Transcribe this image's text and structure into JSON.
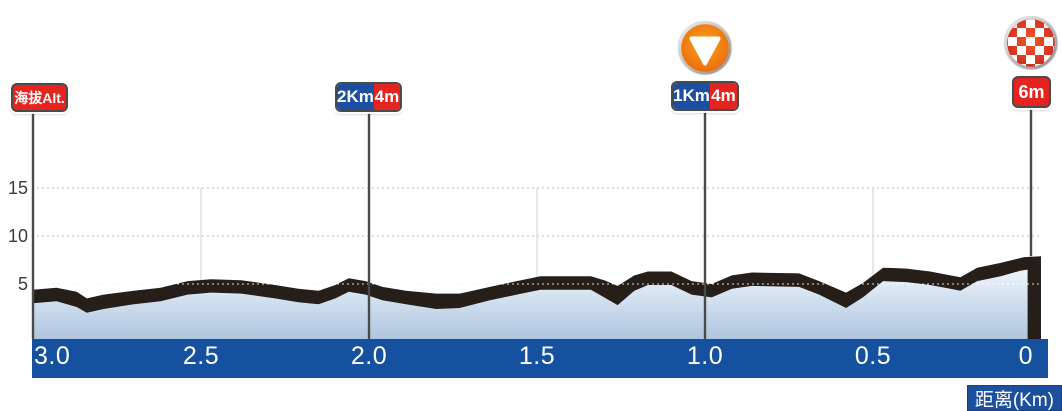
{
  "colors": {
    "road_band": "#251e19",
    "area_top": "#eef4fb",
    "area_bottom": "#aec5df",
    "axis_bar": "#15519f",
    "badge_red": "#e5231f",
    "badge_blue": "#1d4fa1",
    "badge_border": "#4a4a48",
    "grid_gray": "#bdbdbd",
    "grid_vertical": "#d9d9d9",
    "tick_text": "#3a3a3a",
    "bar_text": "#ffffff"
  },
  "chart_data": {
    "type": "area",
    "title": "",
    "xlabel": "距离(Km)",
    "ylabel": "海拔Alt.",
    "x_unit": "Km",
    "y_unit": "m",
    "x_axis_reversed": true,
    "grid": true,
    "x_range": [
      3.0,
      0
    ],
    "y_range": [
      0,
      17
    ],
    "x_ticks": [
      3.0,
      2.5,
      2.0,
      1.5,
      1.0,
      0.5,
      0
    ],
    "x_tick_labels": [
      "3.0",
      "2.5",
      "2.0",
      "1.5",
      "1.0",
      "0.5",
      "0"
    ],
    "y_ticks": [
      5,
      10,
      15
    ],
    "y_tick_labels": [
      "5",
      "10",
      "15"
    ],
    "markers": [
      {
        "id": "altitude-legend",
        "label": "海拔Alt.",
        "km": 3.0
      },
      {
        "id": "km2",
        "label": "2Km",
        "altitude": "4m",
        "km": 2.0
      },
      {
        "id": "km1",
        "label": "1Km",
        "altitude": "4m",
        "km": 1.0,
        "icon": "last-km-triangle-icon"
      },
      {
        "id": "finish",
        "altitude": "6m",
        "km": 0,
        "icon": "finish-checkered-icon"
      }
    ],
    "road_surface_profile_km_m": [
      [
        3.0,
        4.4
      ],
      [
        2.93,
        4.6
      ],
      [
        2.87,
        4.2
      ],
      [
        2.84,
        3.5
      ],
      [
        2.79,
        3.9
      ],
      [
        2.7,
        4.3
      ],
      [
        2.62,
        4.6
      ],
      [
        2.54,
        5.3
      ],
      [
        2.47,
        5.5
      ],
      [
        2.38,
        5.4
      ],
      [
        2.28,
        4.9
      ],
      [
        2.21,
        4.5
      ],
      [
        2.15,
        4.3
      ],
      [
        2.1,
        4.9
      ],
      [
        2.06,
        5.6
      ],
      [
        2.01,
        5.3
      ],
      [
        1.96,
        4.7
      ],
      [
        1.89,
        4.3
      ],
      [
        1.8,
        4.0
      ],
      [
        1.73,
        4.0
      ],
      [
        1.64,
        4.7
      ],
      [
        1.56,
        5.3
      ],
      [
        1.49,
        5.8
      ],
      [
        1.34,
        5.8
      ],
      [
        1.3,
        5.4
      ],
      [
        1.26,
        4.8
      ],
      [
        1.21,
        5.9
      ],
      [
        1.17,
        6.3
      ],
      [
        1.1,
        6.3
      ],
      [
        1.04,
        5.3
      ],
      [
        0.98,
        5.0
      ],
      [
        0.92,
        5.9
      ],
      [
        0.86,
        6.2
      ],
      [
        0.72,
        6.1
      ],
      [
        0.66,
        5.3
      ],
      [
        0.58,
        4.1
      ],
      [
        0.53,
        5.1
      ],
      [
        0.47,
        6.7
      ],
      [
        0.4,
        6.6
      ],
      [
        0.33,
        6.3
      ],
      [
        0.27,
        5.9
      ],
      [
        0.24,
        5.7
      ],
      [
        0.19,
        6.7
      ],
      [
        0.12,
        7.2
      ],
      [
        0.05,
        7.8
      ],
      [
        0.0,
        7.9
      ]
    ],
    "ground_profile_km_m": [
      [
        3.0,
        3.0
      ],
      [
        2.93,
        3.2
      ],
      [
        2.87,
        2.6
      ],
      [
        2.84,
        2.0
      ],
      [
        2.79,
        2.4
      ],
      [
        2.7,
        2.9
      ],
      [
        2.62,
        3.2
      ],
      [
        2.54,
        3.9
      ],
      [
        2.47,
        4.1
      ],
      [
        2.38,
        4.0
      ],
      [
        2.28,
        3.5
      ],
      [
        2.21,
        3.1
      ],
      [
        2.15,
        2.9
      ],
      [
        2.1,
        3.5
      ],
      [
        2.06,
        4.2
      ],
      [
        2.01,
        3.9
      ],
      [
        1.96,
        3.3
      ],
      [
        1.89,
        2.9
      ],
      [
        1.8,
        2.4
      ],
      [
        1.73,
        2.5
      ],
      [
        1.64,
        3.3
      ],
      [
        1.56,
        3.9
      ],
      [
        1.49,
        4.4
      ],
      [
        1.34,
        4.4
      ],
      [
        1.3,
        3.6
      ],
      [
        1.26,
        2.8
      ],
      [
        1.21,
        4.3
      ],
      [
        1.17,
        4.9
      ],
      [
        1.1,
        4.9
      ],
      [
        1.04,
        3.9
      ],
      [
        0.98,
        3.6
      ],
      [
        0.92,
        4.5
      ],
      [
        0.86,
        4.8
      ],
      [
        0.72,
        4.7
      ],
      [
        0.66,
        3.9
      ],
      [
        0.58,
        2.5
      ],
      [
        0.53,
        3.6
      ],
      [
        0.47,
        5.3
      ],
      [
        0.4,
        5.2
      ],
      [
        0.33,
        4.9
      ],
      [
        0.27,
        4.5
      ],
      [
        0.24,
        4.3
      ],
      [
        0.19,
        5.3
      ],
      [
        0.12,
        5.8
      ],
      [
        0.06,
        6.4
      ],
      [
        0.04,
        6.5
      ]
    ]
  }
}
